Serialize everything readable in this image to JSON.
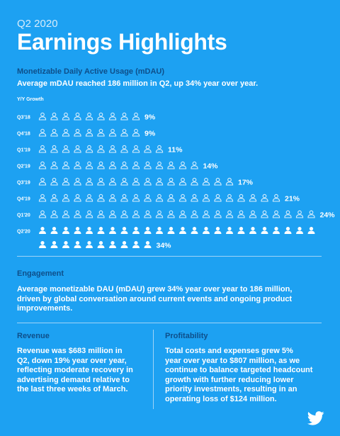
{
  "header": {
    "kicker": "Q2 2020",
    "title": "Earnings Highlights"
  },
  "mdau": {
    "heading": "Monetizable Daily Active Usage (mDAU)",
    "lead": "Average mDAU reached 186 million in Q2, up 34% year over year.",
    "axis_caption": "Y/Y Growth"
  },
  "chart_data": {
    "type": "bar",
    "title": "",
    "ylabel": "Y/Y Growth",
    "categories": [
      "Q3'18",
      "Q4'18",
      "Q1'19",
      "Q2'19",
      "Q3'19",
      "Q4'19",
      "Q1'20",
      "Q2'20"
    ],
    "values": [
      9,
      9,
      11,
      14,
      17,
      21,
      24,
      34
    ],
    "value_labels": [
      "9%",
      "9%",
      "11%",
      "14%",
      "17%",
      "21%",
      "24%",
      "34%"
    ],
    "unit": "%",
    "highlight_index": 7,
    "colors": {
      "outline": "#d9eefc",
      "highlight": "#ffffff"
    }
  },
  "engagement": {
    "heading": "Engagement",
    "lines": [
      "Average monetizable DAU (mDAU) grew 34% year over year to 186 million,",
      "driven by global conversation around current events and ongoing product",
      "improvements."
    ]
  },
  "revenue": {
    "heading": "Revenue",
    "lines": [
      "Revenue was $683 million in",
      "Q2, down 19% year over year,",
      "reflecting moderate recovery in",
      "advertising demand relative to",
      "the last three weeks of March."
    ]
  },
  "profitability": {
    "heading": "Profitability",
    "lines": [
      "Total costs and expenses grew 5%",
      "year over year to $807 million, as we",
      "continue to balance targeted headcount",
      "growth with further reducing lower",
      "priority investments, resulting in an",
      "operating loss of $124 million."
    ]
  },
  "colors": {
    "background": "#1DA1F2",
    "heading": "#0e4f8a",
    "divider": "#9fd3f7"
  },
  "logo": {
    "icon": "twitter-bird-icon"
  }
}
